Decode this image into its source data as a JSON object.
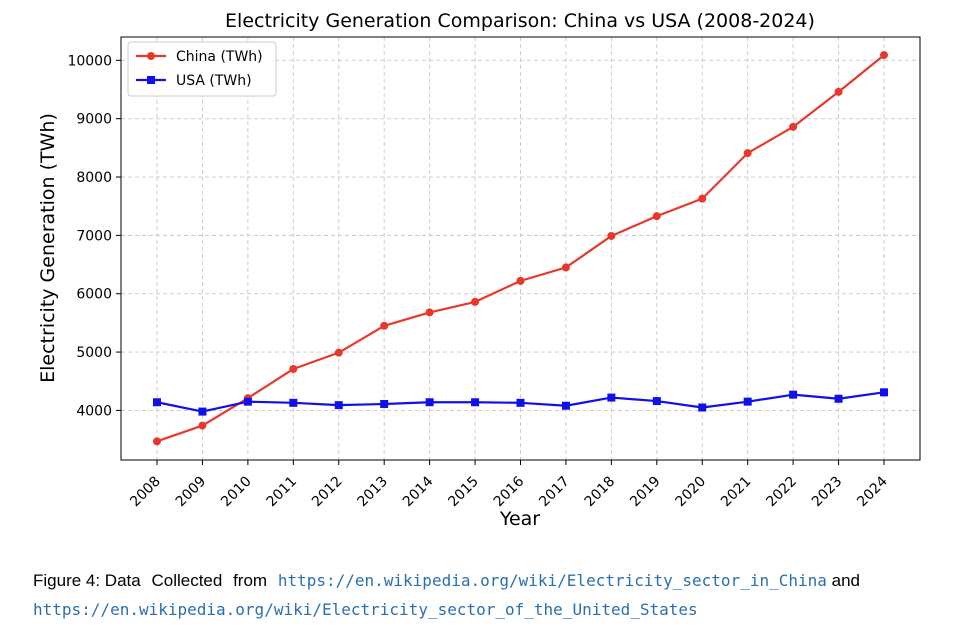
{
  "chart_data": {
    "type": "line",
    "title": "Electricity Generation Comparison: China vs USA (2008-2024)",
    "xlabel": "Year",
    "ylabel": "Electricity Generation (TWh)",
    "x": [
      2008,
      2009,
      2010,
      2011,
      2012,
      2013,
      2014,
      2015,
      2016,
      2017,
      2018,
      2019,
      2020,
      2021,
      2022,
      2023,
      2024
    ],
    "x_tick_labels": [
      "2008",
      "2009",
      "2010",
      "2011",
      "2012",
      "2013",
      "2014",
      "2015",
      "2016",
      "2017",
      "2018",
      "2019",
      "2020",
      "2021",
      "2022",
      "2023",
      "2024"
    ],
    "yticks": [
      4000,
      5000,
      6000,
      7000,
      8000,
      9000,
      10000
    ],
    "ytick_labels": [
      "4000",
      "5000",
      "6000",
      "7000",
      "8000",
      "9000",
      "10000"
    ],
    "ylim": [
      3150,
      10400
    ],
    "grid": true,
    "legend_position": "top-left",
    "series": [
      {
        "name": "China (TWh)",
        "color": "#e8382b",
        "marker": "circle",
        "values": [
          3470,
          3740,
          4210,
          4710,
          4990,
          5450,
          5680,
          5860,
          6220,
          6450,
          6990,
          7330,
          7630,
          8410,
          8860,
          9460,
          10090
        ]
      },
      {
        "name": "USA (TWh)",
        "color": "#1010e8",
        "marker": "square",
        "values": [
          4140,
          3980,
          4150,
          4130,
          4090,
          4110,
          4140,
          4140,
          4130,
          4080,
          4220,
          4160,
          4050,
          4150,
          4270,
          4200,
          4310
        ]
      }
    ]
  },
  "caption": {
    "prefix": "Figure 4: Data",
    "mid1": "Collected",
    "mid2": "from",
    "link1": "https://en.wikipedia.org/wiki/Electricity_sector_in_China",
    "and": "and",
    "link2": "https://en.wikipedia.org/wiki/Electricity_sector_of_the_United_States"
  }
}
